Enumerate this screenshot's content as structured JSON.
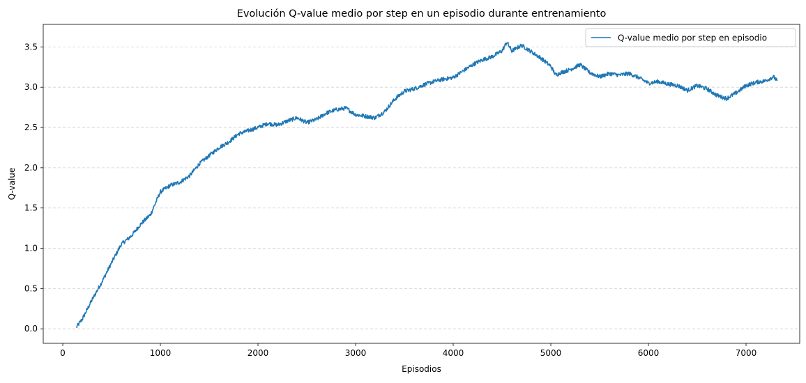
{
  "chart_data": {
    "type": "line",
    "title": "Evolución Q-value medio por step en un episodio durante entrenamiento",
    "xlabel": "Episodios",
    "ylabel": "Q-value",
    "xlim": [
      -200,
      7550
    ],
    "ylim": [
      -0.18,
      3.78
    ],
    "x_ticks": [
      0,
      1000,
      2000,
      3000,
      4000,
      5000,
      6000,
      7000
    ],
    "x_tick_labels": [
      "0",
      "1000",
      "2000",
      "3000",
      "4000",
      "5000",
      "6000",
      "7000"
    ],
    "y_ticks": [
      0.0,
      0.5,
      1.0,
      1.5,
      2.0,
      2.5,
      3.0,
      3.5
    ],
    "y_tick_labels": [
      "0.0",
      "0.5",
      "1.0",
      "1.5",
      "2.0",
      "2.5",
      "3.0",
      "3.5"
    ],
    "grid": {
      "y": true,
      "x": false,
      "style": "dashed"
    },
    "legend": {
      "position": "top-right"
    },
    "series": [
      {
        "name": "Q-value medio por step en episodio",
        "color": "#1f77b4",
        "points": [
          [
            140,
            0.02
          ],
          [
            200,
            0.12
          ],
          [
            300,
            0.36
          ],
          [
            400,
            0.58
          ],
          [
            500,
            0.82
          ],
          [
            600,
            1.05
          ],
          [
            700,
            1.15
          ],
          [
            800,
            1.3
          ],
          [
            900,
            1.42
          ],
          [
            1000,
            1.7
          ],
          [
            1100,
            1.78
          ],
          [
            1200,
            1.82
          ],
          [
            1300,
            1.9
          ],
          [
            1400,
            2.05
          ],
          [
            1500,
            2.15
          ],
          [
            1600,
            2.25
          ],
          [
            1700,
            2.32
          ],
          [
            1800,
            2.42
          ],
          [
            1900,
            2.46
          ],
          [
            2000,
            2.5
          ],
          [
            2100,
            2.55
          ],
          [
            2200,
            2.53
          ],
          [
            2300,
            2.58
          ],
          [
            2400,
            2.62
          ],
          [
            2500,
            2.56
          ],
          [
            2600,
            2.6
          ],
          [
            2700,
            2.68
          ],
          [
            2800,
            2.72
          ],
          [
            2900,
            2.74
          ],
          [
            3000,
            2.66
          ],
          [
            3100,
            2.64
          ],
          [
            3200,
            2.62
          ],
          [
            3300,
            2.7
          ],
          [
            3400,
            2.85
          ],
          [
            3500,
            2.95
          ],
          [
            3600,
            2.98
          ],
          [
            3700,
            3.03
          ],
          [
            3800,
            3.07
          ],
          [
            3900,
            3.1
          ],
          [
            4000,
            3.12
          ],
          [
            4100,
            3.2
          ],
          [
            4200,
            3.28
          ],
          [
            4300,
            3.34
          ],
          [
            4400,
            3.38
          ],
          [
            4500,
            3.45
          ],
          [
            4550,
            3.56
          ],
          [
            4600,
            3.45
          ],
          [
            4700,
            3.52
          ],
          [
            4800,
            3.44
          ],
          [
            4900,
            3.36
          ],
          [
            5000,
            3.26
          ],
          [
            5050,
            3.15
          ],
          [
            5100,
            3.18
          ],
          [
            5200,
            3.22
          ],
          [
            5300,
            3.28
          ],
          [
            5400,
            3.18
          ],
          [
            5500,
            3.13
          ],
          [
            5600,
            3.17
          ],
          [
            5700,
            3.15
          ],
          [
            5800,
            3.17
          ],
          [
            5900,
            3.12
          ],
          [
            6000,
            3.05
          ],
          [
            6100,
            3.07
          ],
          [
            6200,
            3.04
          ],
          [
            6300,
            3.02
          ],
          [
            6400,
            2.96
          ],
          [
            6500,
            3.02
          ],
          [
            6600,
            2.98
          ],
          [
            6700,
            2.9
          ],
          [
            6800,
            2.86
          ],
          [
            6900,
            2.93
          ],
          [
            7000,
            3.02
          ],
          [
            7100,
            3.06
          ],
          [
            7200,
            3.08
          ],
          [
            7280,
            3.13
          ],
          [
            7320,
            3.08
          ]
        ]
      }
    ]
  }
}
